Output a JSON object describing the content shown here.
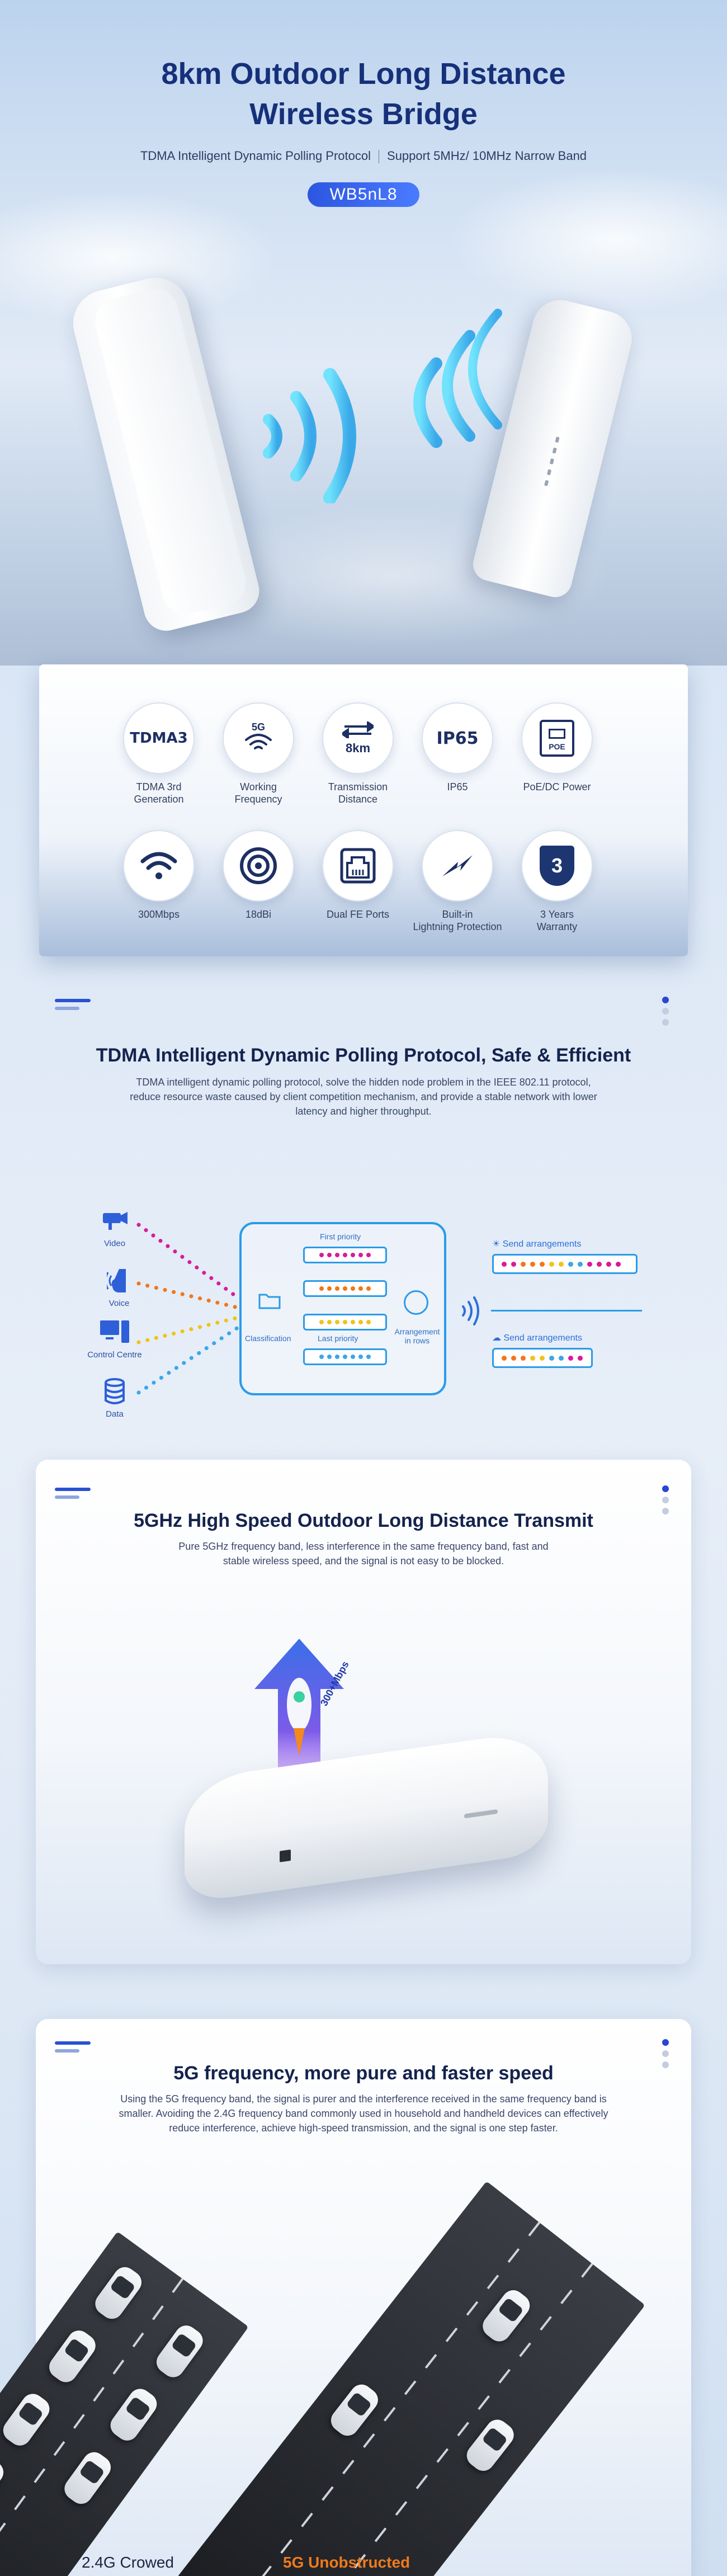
{
  "hero": {
    "title_line1": "8km Outdoor Long Distance",
    "title_line2": "Wireless Bridge",
    "subtitle_left": "TDMA Intelligent Dynamic Polling Protocol",
    "subtitle_right": "Support 5MHz/ 10MHz Narrow Band",
    "model": "WB5nL8"
  },
  "features": [
    {
      "icon": "tdma3-icon",
      "glyph": "TDMA3",
      "label": "TDMA 3rd\nGeneration"
    },
    {
      "icon": "wifi-5g-icon",
      "glyph": "5G",
      "label": "Working\nFrequency"
    },
    {
      "icon": "transmission-distance-icon",
      "glyph": "8km",
      "label": "Transmission\nDistance"
    },
    {
      "icon": "ip65-icon",
      "glyph": "IP65",
      "label": "IP65"
    },
    {
      "icon": "poe-icon",
      "glyph": "POE",
      "label": "PoE/DC Power"
    },
    {
      "icon": "wifi-icon",
      "glyph": "",
      "label": "300Mbps"
    },
    {
      "icon": "antenna-gain-icon",
      "glyph": "",
      "label": "18dBi"
    },
    {
      "icon": "ethernet-port-icon",
      "glyph": "",
      "label": "Dual FE Ports"
    },
    {
      "icon": "lightning-icon",
      "glyph": "",
      "label": "Built-in\nLightning Protection"
    },
    {
      "icon": "warranty-shield-icon",
      "glyph": "3",
      "label": "3 Years\nWarranty"
    }
  ],
  "tdma": {
    "title": "TDMA Intelligent Dynamic Polling Protocol, Safe & Efficient",
    "description": "TDMA intelligent dynamic polling protocol, solve the hidden node problem in the IEEE 802.11 protocol, reduce resource waste caused by client competition mechanism, and provide a stable network with lower latency and higher throughput.",
    "sources": [
      "Video",
      "Voice",
      "Control Centre",
      "Data"
    ],
    "first_priority": "First priority",
    "last_priority": "Last priority",
    "classification": "Classification",
    "arrangement": "Arrangement\nin rows",
    "send_arrangements": "Send arrangements",
    "colors": {
      "video": "#d81b9a",
      "voice": "#f2761c",
      "control": "#f2c21c",
      "data": "#3aa7e8"
    }
  },
  "high_speed": {
    "title": "5GHz High Speed Outdoor Long Distance Transmit",
    "description": "Pure 5GHz frequency band, less interference in the same frequency band, fast and stable wireless speed, and the signal is not easy to be blocked.",
    "speed_label": "300+Mbps"
  },
  "frequency": {
    "title": "5G frequency, more pure and faster speed",
    "description": "Using the 5G frequency band, the signal is purer and the interference received in the same frequency band is smaller. Avoiding the 2.4G frequency band commonly used in household and handheld devices can effectively reduce interference, achieve high-speed transmission, and the signal is one step faster.",
    "label_24g": "2.4G Crowed",
    "label_5g": "5G Unobstructed"
  }
}
